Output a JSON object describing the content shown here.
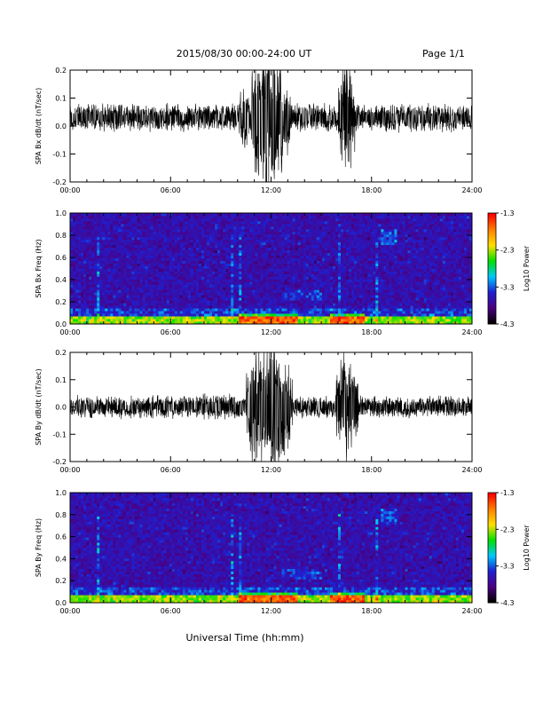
{
  "header": {
    "title": "2015/08/30  00:00-24:00 UT",
    "page_label": "Page 1/1"
  },
  "chart_data": [
    {
      "type": "line",
      "id": "bx-timeseries",
      "ylabel": "SPA Bx dB/dt (nT/sec)",
      "xlim": [
        0,
        24
      ],
      "ylim": [
        -0.2,
        0.2
      ],
      "x_ticks": [
        "00:00",
        "06:00",
        "12:00",
        "18:00",
        "24:00"
      ],
      "y_ticks": [
        "-0.2",
        "-0.1",
        "0.0",
        "0.1",
        "0.2"
      ],
      "baseline": 0.03,
      "bursts": [
        {
          "start": 10.8,
          "end": 12.8,
          "amplitude": 0.22
        },
        {
          "start": 16.0,
          "end": 17.0,
          "amplitude": 0.16
        },
        {
          "start": 10.0,
          "end": 10.8,
          "amplitude": 0.08
        },
        {
          "start": 12.8,
          "end": 13.2,
          "amplitude": 0.1
        }
      ],
      "background_amplitude": 0.03
    },
    {
      "type": "heatmap",
      "id": "bx-spectrogram",
      "ylabel": "SPA Bx Freq (Hz)",
      "xlim": [
        0,
        24
      ],
      "ylim": [
        0.0,
        1.0
      ],
      "x_ticks": [
        "00:00",
        "06:00",
        "12:00",
        "18:00",
        "24:00"
      ],
      "y_ticks": [
        "0.0",
        "0.2",
        "0.4",
        "0.6",
        "0.8",
        "1.0"
      ],
      "colorbar": {
        "label": "Log10 Power",
        "ticks": [
          "-1.3",
          "-2.3",
          "-3.3",
          "-4.3"
        ],
        "range": [
          -4.3,
          -1.3
        ],
        "colors": [
          "#000000",
          "#4b0082",
          "#1f1fd0",
          "#00c8ff",
          "#00e000",
          "#ffe000",
          "#ff8000",
          "#ff0000"
        ]
      }
    },
    {
      "type": "line",
      "id": "by-timeseries",
      "ylabel": "SPA By dB/dt (nT/sec)",
      "xlim": [
        0,
        24
      ],
      "ylim": [
        -0.2,
        0.2
      ],
      "x_ticks": [
        "00:00",
        "06:00",
        "12:00",
        "18:00",
        "24:00"
      ],
      "y_ticks": [
        "-0.2",
        "-0.1",
        "0.0",
        "0.1",
        "0.2"
      ],
      "baseline": 0.0,
      "bursts": [
        {
          "start": 10.5,
          "end": 13.3,
          "amplitude": 0.18
        },
        {
          "start": 15.9,
          "end": 17.2,
          "amplitude": 0.15
        },
        {
          "start": 7.0,
          "end": 10.5,
          "amplitude": 0.04
        }
      ],
      "background_amplitude": 0.025
    },
    {
      "type": "heatmap",
      "id": "by-spectrogram",
      "ylabel": "SPA By Freq (Hz)",
      "xlim": [
        0,
        24
      ],
      "ylim": [
        0.0,
        1.0
      ],
      "x_ticks": [
        "00:00",
        "06:00",
        "12:00",
        "18:00",
        "24:00"
      ],
      "y_ticks": [
        "0.0",
        "0.2",
        "0.4",
        "0.6",
        "0.8",
        "1.0"
      ],
      "colorbar": {
        "label": "Log10 Power",
        "ticks": [
          "-1.3",
          "-2.3",
          "-3.3",
          "-4.3"
        ],
        "range": [
          -4.3,
          -1.3
        ],
        "colors": [
          "#000000",
          "#4b0082",
          "#1f1fd0",
          "#00c8ff",
          "#00e000",
          "#ffe000",
          "#ff8000",
          "#ff0000"
        ]
      }
    }
  ],
  "xlabel": "Universal Time (hh:mm)"
}
